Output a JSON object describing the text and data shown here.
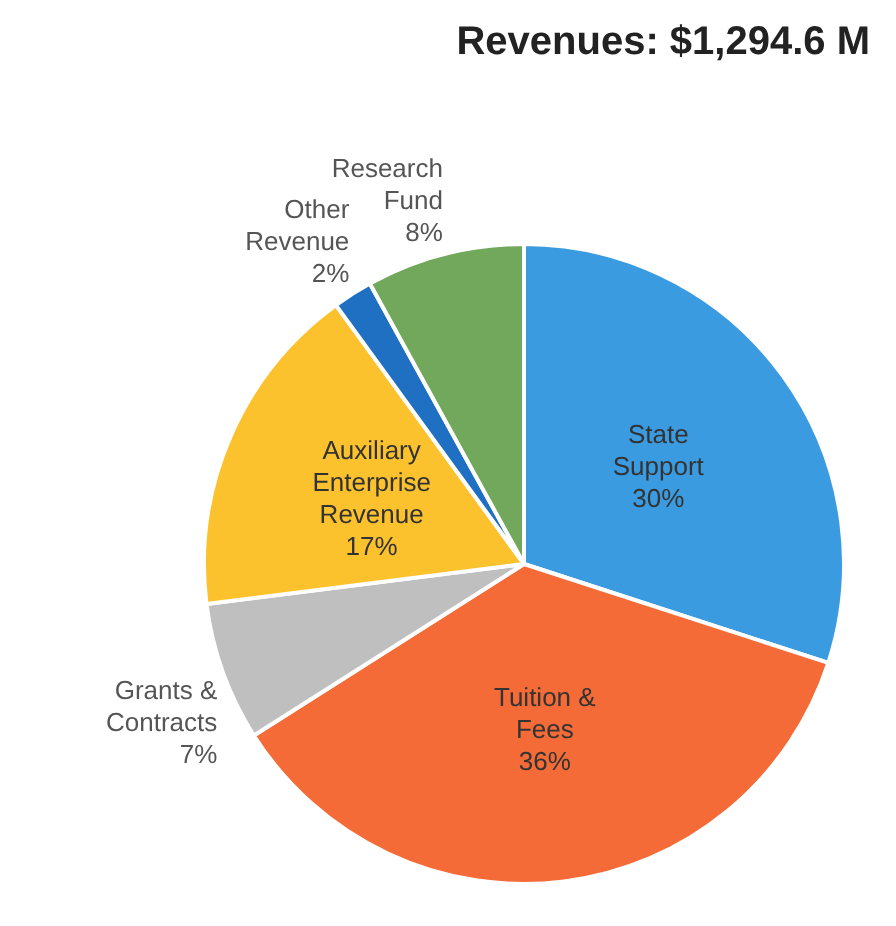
{
  "chart_data": {
    "type": "pie",
    "title": "Revenues: $1,294.6 M",
    "categories": [
      "State Support",
      "Tuition & Fees",
      "Grants & Contracts",
      "Auxiliary Enterprise Revenue",
      "Other Revenue",
      "Research Fund"
    ],
    "values": [
      30,
      36,
      7,
      17,
      2,
      8
    ],
    "colors": [
      "#3b9be0",
      "#f46b38",
      "#bfbfbf",
      "#fcc22e",
      "#1f6fc2",
      "#71a85b"
    ],
    "value_labels": [
      "30%",
      "36%",
      "7%",
      "17%",
      "2%",
      "8%"
    ],
    "legend": false
  }
}
